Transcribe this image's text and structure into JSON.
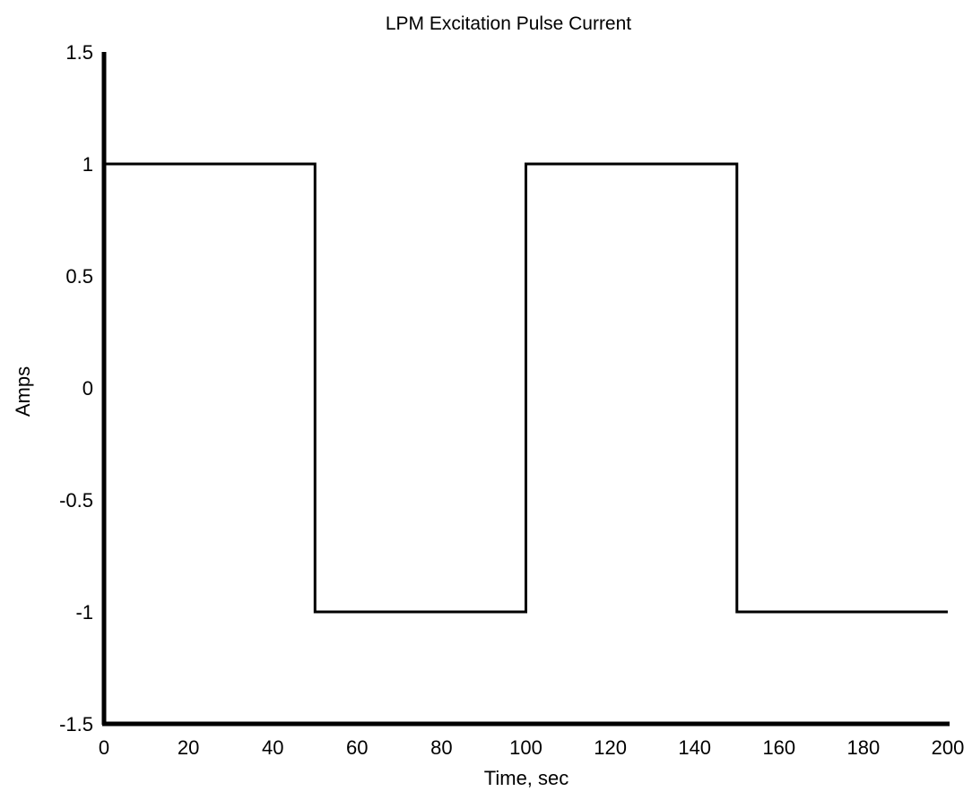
{
  "chart_data": {
    "type": "line",
    "title": "LPM Excitation Pulse Current",
    "xlabel": "Time, sec",
    "ylabel": "Amps",
    "xlim": [
      0,
      200
    ],
    "ylim": [
      -1.5,
      1.5
    ],
    "xticks": [
      "0",
      "20",
      "40",
      "60",
      "80",
      "100",
      "120",
      "140",
      "160",
      "180",
      "200"
    ],
    "yticks": [
      "1.5",
      "1",
      "0.5",
      "0",
      "-0.5",
      "-1",
      "-1.5"
    ],
    "grid": false,
    "series": [
      {
        "x": [
          0,
          50,
          50,
          100,
          100,
          150,
          150,
          200
        ],
        "y": [
          1,
          1,
          -1,
          -1,
          1,
          1,
          -1,
          -1
        ]
      }
    ],
    "colors": {
      "line": "#000000",
      "axes": "#000000"
    }
  }
}
